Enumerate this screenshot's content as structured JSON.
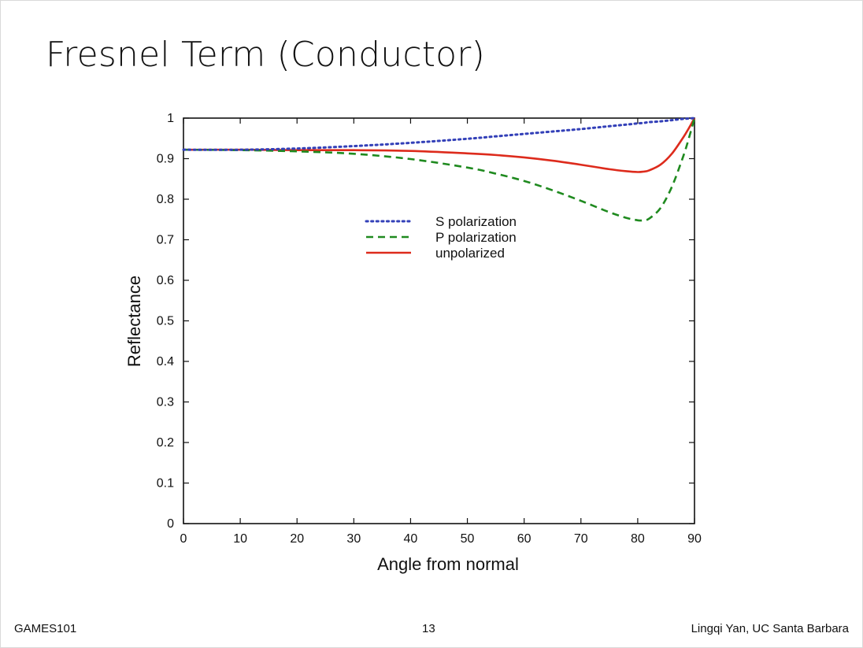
{
  "slide": {
    "title": "Fresnel Term (Conductor)",
    "footer_left": "GAMES101",
    "page_number": "13",
    "footer_right": "Lingqi Yan, UC Santa Barbara"
  },
  "chart_data": {
    "type": "line",
    "title": "",
    "xlabel": "Angle from normal",
    "ylabel": "Reflectance",
    "xlim": [
      0,
      90
    ],
    "ylim": [
      0,
      1
    ],
    "xticks": [
      0,
      10,
      20,
      30,
      40,
      50,
      60,
      70,
      80,
      90
    ],
    "yticks": [
      0,
      0.1,
      0.2,
      0.3,
      0.4,
      0.5,
      0.6,
      0.7,
      0.8,
      0.9,
      1
    ],
    "ytick_labels": [
      "0",
      "0.1",
      "0.2",
      "0.3",
      "0.4",
      "0.5",
      "0.6",
      "0.7",
      "0.8",
      "0.9",
      "1"
    ],
    "grid": false,
    "legend_position": "center",
    "x": [
      0,
      10,
      20,
      30,
      40,
      50,
      55,
      60,
      65,
      70,
      75,
      78,
      80,
      81,
      82,
      84,
      86,
      88,
      89,
      90
    ],
    "series": [
      {
        "name": "S polarization",
        "style": "dotted",
        "color": "#3340b8",
        "values": [
          0.922,
          0.922,
          0.925,
          0.931,
          0.939,
          0.949,
          0.955,
          0.961,
          0.967,
          0.973,
          0.98,
          0.984,
          0.987,
          0.988,
          0.99,
          0.992,
          0.995,
          0.998,
          0.999,
          1.0
        ]
      },
      {
        "name": "P polarization",
        "style": "dashed",
        "color": "#1f8a1f",
        "values": [
          0.922,
          0.921,
          0.918,
          0.912,
          0.899,
          0.878,
          0.863,
          0.845,
          0.822,
          0.796,
          0.768,
          0.754,
          0.748,
          0.748,
          0.752,
          0.778,
          0.83,
          0.905,
          0.95,
          1.0
        ]
      },
      {
        "name": "unpolarized",
        "style": "solid",
        "color": "#dd2b1c",
        "values": [
          0.922,
          0.922,
          0.921,
          0.921,
          0.919,
          0.913,
          0.909,
          0.903,
          0.895,
          0.885,
          0.874,
          0.869,
          0.867,
          0.868,
          0.871,
          0.885,
          0.912,
          0.952,
          0.975,
          1.0
        ]
      }
    ]
  }
}
